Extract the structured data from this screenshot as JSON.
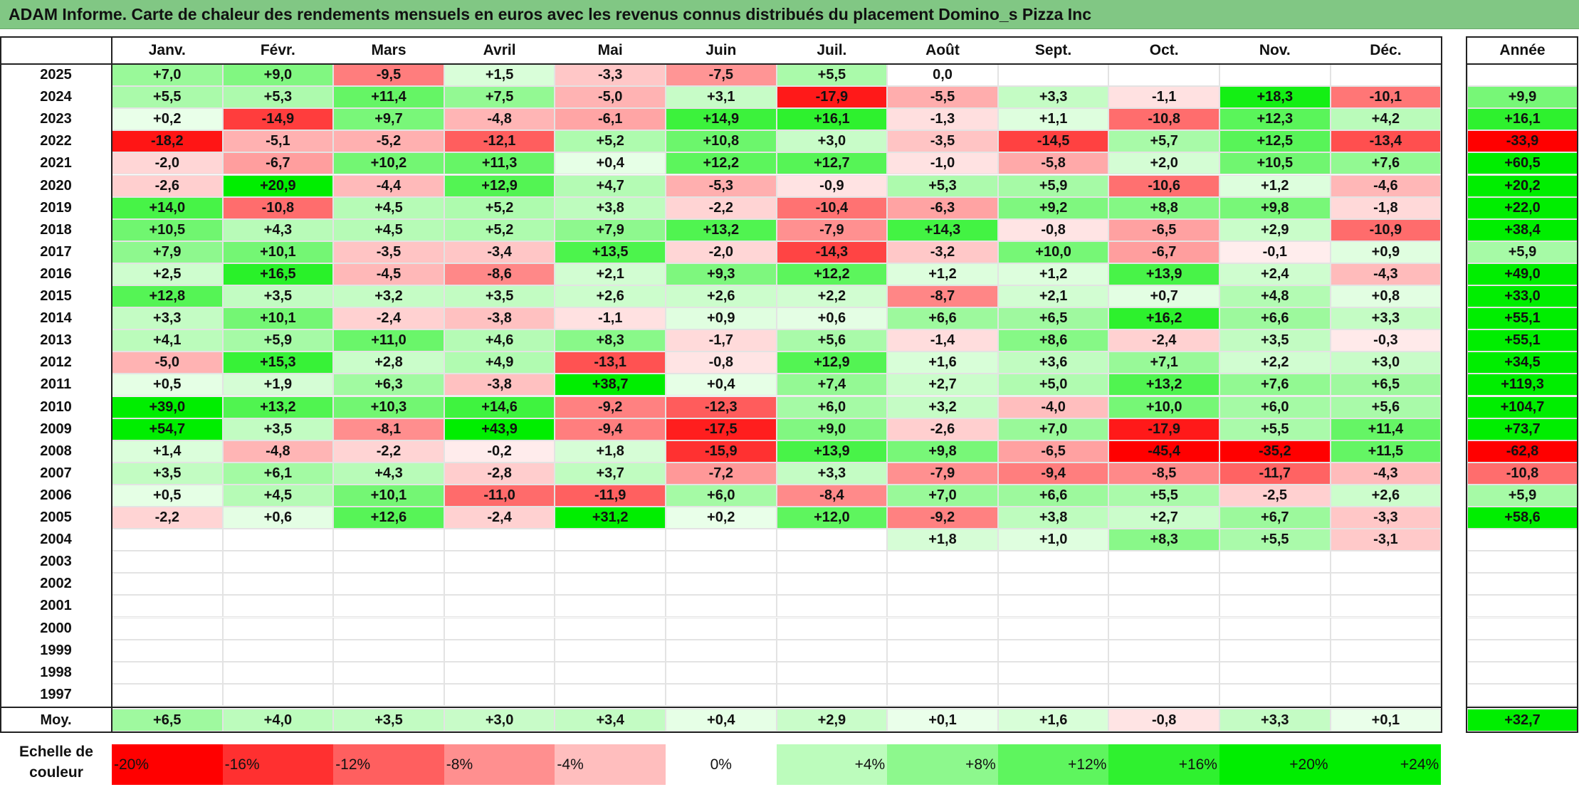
{
  "title": "ADAM Informe. Carte de chaleur des rendements mensuels en euros avec les revenus connus distribués du placement Domino_s Pizza Inc",
  "chart_data": {
    "type": "heatmap",
    "title": "ADAM Informe. Carte de chaleur des rendements mensuels en euros avec les revenus connus distribués du placement Domino_s Pizza Inc",
    "months": [
      "Janv.",
      "Févr.",
      "Mars",
      "Avril",
      "Mai",
      "Juin",
      "Juil.",
      "Août",
      "Sept.",
      "Oct.",
      "Nov.",
      "Déc."
    ],
    "year_header": "Année",
    "rows": [
      {
        "year": "2025",
        "values": [
          "+7,0",
          "+9,0",
          "-9,5",
          "+1,5",
          "-3,3",
          "-7,5",
          "+5,5",
          "0,0",
          "",
          "",
          "",
          ""
        ],
        "annual": ""
      },
      {
        "year": "2024",
        "values": [
          "+5,5",
          "+5,3",
          "+11,4",
          "+7,5",
          "-5,0",
          "+3,1",
          "-17,9",
          "-5,5",
          "+3,3",
          "-1,1",
          "+18,3",
          "-10,1"
        ],
        "annual": "+9,9"
      },
      {
        "year": "2023",
        "values": [
          "+0,2",
          "-14,9",
          "+9,7",
          "-4,8",
          "-6,1",
          "+14,9",
          "+16,1",
          "-1,3",
          "+1,1",
          "-10,8",
          "+12,3",
          "+4,2"
        ],
        "annual": "+16,1"
      },
      {
        "year": "2022",
        "values": [
          "-18,2",
          "-5,1",
          "-5,2",
          "-12,1",
          "+5,2",
          "+10,8",
          "+3,0",
          "-3,5",
          "-14,5",
          "+5,7",
          "+12,5",
          "-13,4"
        ],
        "annual": "-33,9"
      },
      {
        "year": "2021",
        "values": [
          "-2,0",
          "-6,7",
          "+10,2",
          "+11,3",
          "+0,4",
          "+12,2",
          "+12,7",
          "-1,0",
          "-5,8",
          "+2,0",
          "+10,5",
          "+7,6"
        ],
        "annual": "+60,5"
      },
      {
        "year": "2020",
        "values": [
          "-2,6",
          "+20,9",
          "-4,4",
          "+12,9",
          "+4,7",
          "-5,3",
          "-0,9",
          "+5,3",
          "+5,9",
          "-10,6",
          "+1,2",
          "-4,6"
        ],
        "annual": "+20,2"
      },
      {
        "year": "2019",
        "values": [
          "+14,0",
          "-10,8",
          "+4,5",
          "+5,2",
          "+3,8",
          "-2,2",
          "-10,4",
          "-6,3",
          "+9,2",
          "+8,8",
          "+9,8",
          "-1,8"
        ],
        "annual": "+22,0"
      },
      {
        "year": "2018",
        "values": [
          "+10,5",
          "+4,3",
          "+4,5",
          "+5,2",
          "+7,9",
          "+13,2",
          "-7,9",
          "+14,3",
          "-0,8",
          "-6,5",
          "+2,9",
          "-10,9"
        ],
        "annual": "+38,4"
      },
      {
        "year": "2017",
        "values": [
          "+7,9",
          "+10,1",
          "-3,5",
          "-3,4",
          "+13,5",
          "-2,0",
          "-14,3",
          "-3,2",
          "+10,0",
          "-6,7",
          "-0,1",
          "+0,9"
        ],
        "annual": "+5,9"
      },
      {
        "year": "2016",
        "values": [
          "+2,5",
          "+16,5",
          "-4,5",
          "-8,6",
          "+2,1",
          "+9,3",
          "+12,2",
          "+1,2",
          "+1,2",
          "+13,9",
          "+2,4",
          "-4,3"
        ],
        "annual": "+49,0"
      },
      {
        "year": "2015",
        "values": [
          "+12,8",
          "+3,5",
          "+3,2",
          "+3,5",
          "+2,6",
          "+2,6",
          "+2,2",
          "-8,7",
          "+2,1",
          "+0,7",
          "+4,8",
          "+0,8"
        ],
        "annual": "+33,0"
      },
      {
        "year": "2014",
        "values": [
          "+3,3",
          "+10,1",
          "-2,4",
          "-3,8",
          "-1,1",
          "+0,9",
          "+0,6",
          "+6,6",
          "+6,5",
          "+16,2",
          "+6,6",
          "+3,3"
        ],
        "annual": "+55,1"
      },
      {
        "year": "2013",
        "values": [
          "+4,1",
          "+5,9",
          "+11,0",
          "+4,6",
          "+8,3",
          "-1,7",
          "+5,6",
          "-1,4",
          "+8,6",
          "-2,4",
          "+3,5",
          "-0,3"
        ],
        "annual": "+55,1"
      },
      {
        "year": "2012",
        "values": [
          "-5,0",
          "+15,3",
          "+2,8",
          "+4,9",
          "-13,1",
          "-0,8",
          "+12,9",
          "+1,6",
          "+3,6",
          "+7,1",
          "+2,2",
          "+3,0"
        ],
        "annual": "+34,5"
      },
      {
        "year": "2011",
        "values": [
          "+0,5",
          "+1,9",
          "+6,3",
          "-3,8",
          "+38,7",
          "+0,4",
          "+7,4",
          "+2,7",
          "+5,0",
          "+13,2",
          "+7,6",
          "+6,5"
        ],
        "annual": "+119,3"
      },
      {
        "year": "2010",
        "values": [
          "+39,0",
          "+13,2",
          "+10,3",
          "+14,6",
          "-9,2",
          "-12,3",
          "+6,0",
          "+3,2",
          "-4,0",
          "+10,0",
          "+6,0",
          "+5,6"
        ],
        "annual": "+104,7"
      },
      {
        "year": "2009",
        "values": [
          "+54,7",
          "+3,5",
          "-8,1",
          "+43,9",
          "-9,4",
          "-17,5",
          "+9,0",
          "-2,6",
          "+7,0",
          "-17,9",
          "+5,5",
          "+11,4"
        ],
        "annual": "+73,7"
      },
      {
        "year": "2008",
        "values": [
          "+1,4",
          "-4,8",
          "-2,2",
          "-0,2",
          "+1,8",
          "-15,9",
          "+13,9",
          "+9,8",
          "-6,5",
          "-45,4",
          "-35,2",
          "+11,5"
        ],
        "annual": "-62,8"
      },
      {
        "year": "2007",
        "values": [
          "+3,5",
          "+6,1",
          "+4,3",
          "-2,8",
          "+3,7",
          "-7,2",
          "+3,3",
          "-7,9",
          "-9,4",
          "-8,5",
          "-11,7",
          "-4,3"
        ],
        "annual": "-10,8"
      },
      {
        "year": "2006",
        "values": [
          "+0,5",
          "+4,5",
          "+10,1",
          "-11,0",
          "-11,9",
          "+6,0",
          "-8,4",
          "+7,0",
          "+6,6",
          "+5,5",
          "-2,5",
          "+2,6"
        ],
        "annual": "+5,9"
      },
      {
        "year": "2005",
        "values": [
          "-2,2",
          "+0,6",
          "+12,6",
          "-2,4",
          "+31,2",
          "+0,2",
          "+12,0",
          "-9,2",
          "+3,8",
          "+2,7",
          "+6,7",
          "-3,3"
        ],
        "annual": "+58,6"
      },
      {
        "year": "2004",
        "values": [
          "",
          "",
          "",
          "",
          "",
          "",
          "",
          "+1,8",
          "+1,0",
          "+8,3",
          "+5,5",
          "-3,1"
        ],
        "annual": ""
      },
      {
        "year": "2003",
        "values": [
          "",
          "",
          "",
          "",
          "",
          "",
          "",
          "",
          "",
          "",
          "",
          ""
        ],
        "annual": ""
      },
      {
        "year": "2002",
        "values": [
          "",
          "",
          "",
          "",
          "",
          "",
          "",
          "",
          "",
          "",
          "",
          ""
        ],
        "annual": ""
      },
      {
        "year": "2001",
        "values": [
          "",
          "",
          "",
          "",
          "",
          "",
          "",
          "",
          "",
          "",
          "",
          ""
        ],
        "annual": ""
      },
      {
        "year": "2000",
        "values": [
          "",
          "",
          "",
          "",
          "",
          "",
          "",
          "",
          "",
          "",
          "",
          ""
        ],
        "annual": ""
      },
      {
        "year": "1999",
        "values": [
          "",
          "",
          "",
          "",
          "",
          "",
          "",
          "",
          "",
          "",
          "",
          ""
        ],
        "annual": ""
      },
      {
        "year": "1998",
        "values": [
          "",
          "",
          "",
          "",
          "",
          "",
          "",
          "",
          "",
          "",
          "",
          ""
        ],
        "annual": ""
      },
      {
        "year": "1997",
        "values": [
          "",
          "",
          "",
          "",
          "",
          "",
          "",
          "",
          "",
          "",
          "",
          ""
        ],
        "annual": ""
      }
    ],
    "average": {
      "label": "Moy.",
      "values": [
        "+6,5",
        "+4,0",
        "+3,5",
        "+3,0",
        "+3,4",
        "+0,4",
        "+2,9",
        "+0,1",
        "+1,6",
        "-0,8",
        "+3,3",
        "+0,1"
      ],
      "annual": "+32,7"
    },
    "legend": {
      "label": "Echelle de couleur",
      "steps": [
        "-20%",
        "-16%",
        "-12%",
        "-8%",
        "-4%",
        "0%",
        "+4%",
        "+8%",
        "+12%",
        "+16%",
        "+20%",
        "+24%"
      ]
    },
    "colors": {
      "negative": "#ff0000",
      "positive": "#00ee00",
      "neutral": "#ffffff",
      "title_bar": "#81c784"
    }
  }
}
